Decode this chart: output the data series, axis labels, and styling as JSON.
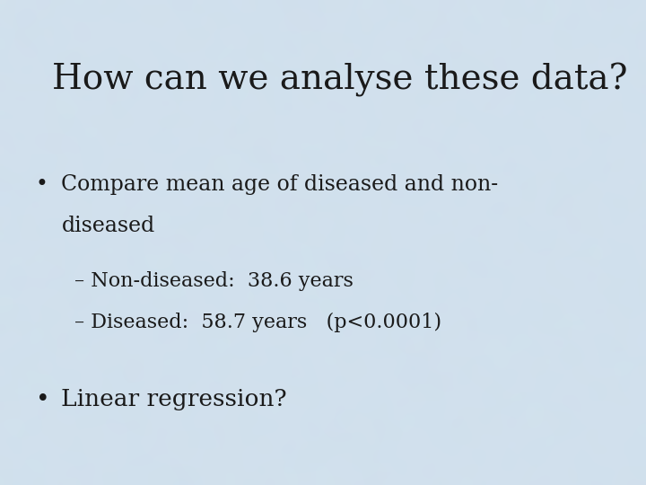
{
  "title": "How can we analyse these data?",
  "background_color_base": [
    0.82,
    0.88,
    0.93
  ],
  "text_color": "#1a1a1a",
  "title_fontsize": 28,
  "body_fontsize": 17,
  "sub_fontsize": 16,
  "bullet2_fontsize": 19,
  "title_font": "DejaVu Serif",
  "bullet1_line1": "Compare mean age of diseased and non-",
  "bullet1_line2": "diseased",
  "sub1": "– Non-diseased:  38.6 years",
  "sub2": "– Diseased:  58.7 years   (p<0.0001)",
  "bullet2": "Linear regression?",
  "bullet_symbol": "•"
}
